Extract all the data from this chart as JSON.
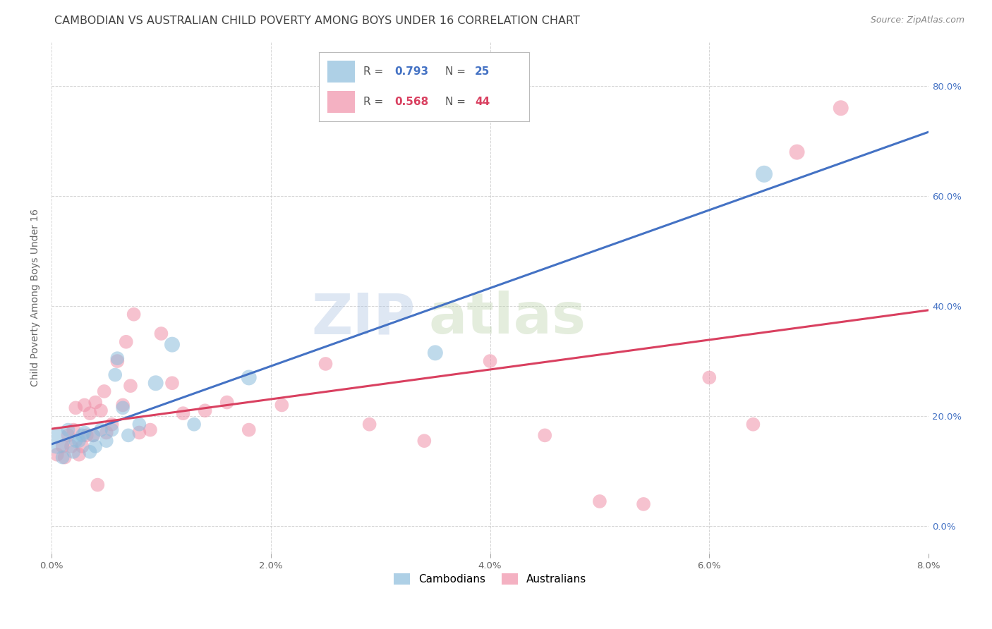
{
  "title": "CAMBODIAN VS AUSTRALIAN CHILD POVERTY AMONG BOYS UNDER 16 CORRELATION CHART",
  "source": "Source: ZipAtlas.com",
  "ylabel": "Child Poverty Among Boys Under 16",
  "xlim": [
    0.0,
    0.08
  ],
  "ylim": [
    -0.05,
    0.88
  ],
  "x_ticks": [
    0.0,
    0.02,
    0.04,
    0.06,
    0.08
  ],
  "y_ticks": [
    0.0,
    0.2,
    0.4,
    0.6,
    0.8
  ],
  "cambodian_color": "#8cbcdc",
  "australian_color": "#f090a8",
  "line_cambodian_color": "#4472C4",
  "line_australian_color": "#D94060",
  "legend1_r": "0.793",
  "legend1_n": "25",
  "legend2_r": "0.568",
  "legend2_n": "44",
  "background_color": "#ffffff",
  "grid_color": "#cccccc",
  "title_color": "#444444",
  "title_fontsize": 11.5,
  "ylabel_fontsize": 10,
  "tick_fontsize": 9.5,
  "source_fontsize": 9,
  "watermark_zip_color": "#aac0e0",
  "watermark_atlas_color": "#b8d0a8",
  "cambodians_x": [
    0.0005,
    0.001,
    0.0015,
    0.002,
    0.0022,
    0.0025,
    0.0028,
    0.003,
    0.0035,
    0.0038,
    0.004,
    0.0045,
    0.005,
    0.0055,
    0.0058,
    0.006,
    0.0065,
    0.007,
    0.008,
    0.0095,
    0.011,
    0.013,
    0.018,
    0.035,
    0.065
  ],
  "cambodians_y": [
    0.155,
    0.125,
    0.175,
    0.135,
    0.155,
    0.155,
    0.165,
    0.17,
    0.135,
    0.165,
    0.145,
    0.175,
    0.155,
    0.175,
    0.275,
    0.305,
    0.215,
    0.165,
    0.185,
    0.26,
    0.33,
    0.185,
    0.27,
    0.315,
    0.64
  ],
  "cambodians_size": [
    700,
    200,
    200,
    200,
    200,
    200,
    200,
    200,
    200,
    200,
    200,
    200,
    200,
    200,
    200,
    200,
    200,
    200,
    200,
    250,
    250,
    200,
    250,
    250,
    300
  ],
  "australians_x": [
    0.0005,
    0.001,
    0.0012,
    0.0015,
    0.0018,
    0.002,
    0.0022,
    0.0025,
    0.0028,
    0.003,
    0.0032,
    0.0035,
    0.0038,
    0.004,
    0.0042,
    0.0045,
    0.0048,
    0.005,
    0.0055,
    0.006,
    0.0065,
    0.0068,
    0.0072,
    0.0075,
    0.008,
    0.009,
    0.01,
    0.011,
    0.012,
    0.014,
    0.016,
    0.018,
    0.021,
    0.025,
    0.029,
    0.034,
    0.04,
    0.045,
    0.05,
    0.054,
    0.06,
    0.064,
    0.068,
    0.072
  ],
  "australians_y": [
    0.13,
    0.145,
    0.125,
    0.165,
    0.145,
    0.175,
    0.215,
    0.13,
    0.145,
    0.22,
    0.165,
    0.205,
    0.165,
    0.225,
    0.075,
    0.21,
    0.245,
    0.17,
    0.185,
    0.3,
    0.22,
    0.335,
    0.255,
    0.385,
    0.17,
    0.175,
    0.35,
    0.26,
    0.205,
    0.21,
    0.225,
    0.175,
    0.22,
    0.295,
    0.185,
    0.155,
    0.3,
    0.165,
    0.045,
    0.04,
    0.27,
    0.185,
    0.68,
    0.76
  ],
  "australians_size": [
    200,
    200,
    200,
    200,
    200,
    200,
    200,
    200,
    200,
    200,
    200,
    200,
    200,
    200,
    200,
    200,
    200,
    200,
    200,
    200,
    200,
    200,
    200,
    200,
    200,
    200,
    200,
    200,
    200,
    200,
    200,
    200,
    200,
    200,
    200,
    200,
    200,
    200,
    200,
    200,
    200,
    200,
    250,
    250
  ]
}
